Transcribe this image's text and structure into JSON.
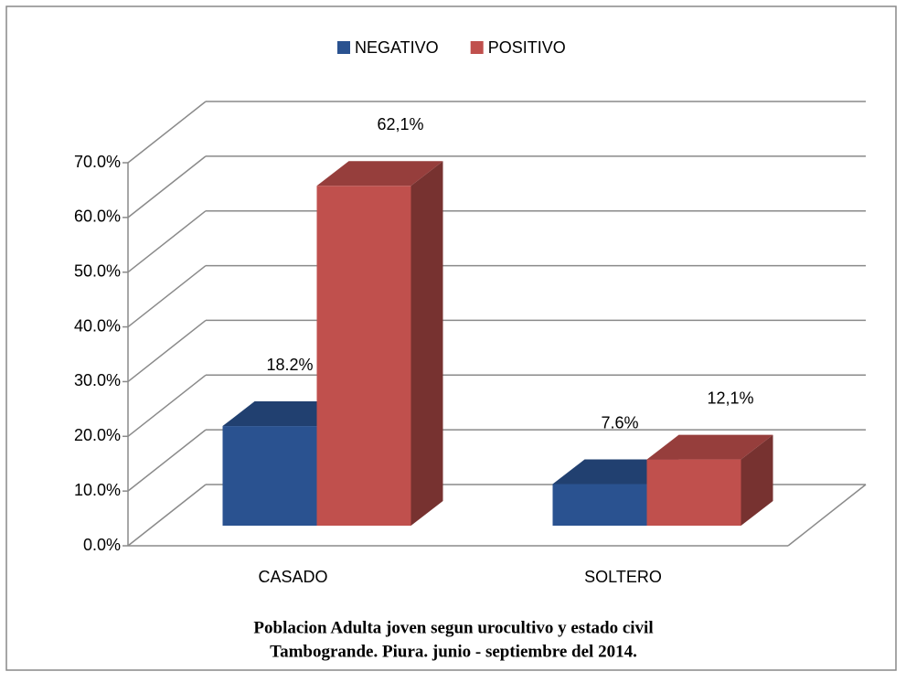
{
  "chart_data": {
    "type": "bar3d",
    "categories": [
      "CASADO",
      "SOLTERO"
    ],
    "series": [
      {
        "name": "NEGATIVO",
        "color": "#2a5290",
        "values": [
          18.2,
          7.6
        ],
        "value_labels": [
          "18.2%",
          "7.6%"
        ]
      },
      {
        "name": "POSITIVO",
        "color": "#c0504d",
        "values": [
          62.1,
          12.1
        ],
        "value_labels": [
          "62,1%",
          "12,1%"
        ]
      }
    ],
    "ylim": [
      0,
      70
    ],
    "yticks": [
      {
        "value": 0,
        "label": "0.0%"
      },
      {
        "value": 10,
        "label": "10.0%"
      },
      {
        "value": 20,
        "label": "20.0%"
      },
      {
        "value": 30,
        "label": "30.0%"
      },
      {
        "value": 40,
        "label": "40.0%"
      },
      {
        "value": 50,
        "label": "50.0%"
      },
      {
        "value": 60,
        "label": "60.0%"
      },
      {
        "value": 70,
        "label": "70.0%"
      }
    ],
    "grid": true,
    "legend": "top",
    "caption": [
      "Poblacion Adulta joven segun urocultivo y estado civil",
      "Tambogrande. Piura. junio - septiembre del 2014."
    ]
  }
}
